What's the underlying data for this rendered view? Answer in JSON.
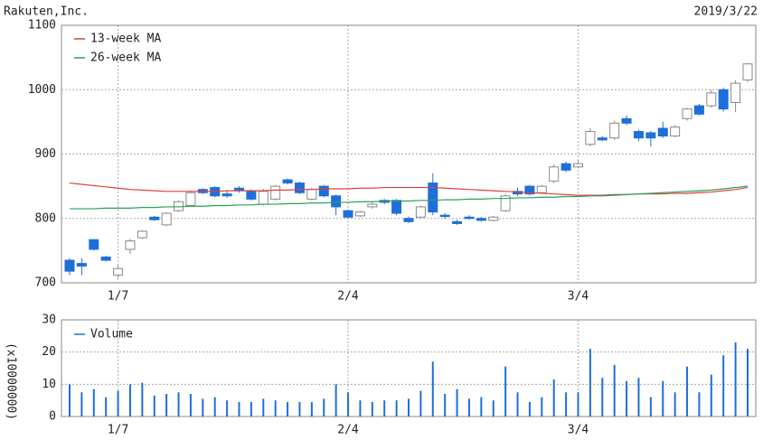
{
  "chart_data": [
    {
      "type": "candlestick",
      "title": "Rakuten,Inc.",
      "date": "2019/3/22",
      "categories": [
        null,
        null,
        null,
        null,
        "1/7",
        null,
        null,
        null,
        null,
        null,
        null,
        null,
        null,
        null,
        null,
        null,
        null,
        null,
        null,
        null,
        null,
        null,
        null,
        "2/4",
        null,
        null,
        null,
        null,
        null,
        null,
        null,
        null,
        null,
        null,
        null,
        null,
        null,
        null,
        null,
        null,
        null,
        null,
        "3/4",
        null,
        null,
        null,
        null,
        null,
        null,
        null,
        null,
        null,
        null,
        null,
        null,
        null,
        null
      ],
      "open": [
        735,
        730,
        767,
        740,
        712,
        752,
        770,
        802,
        790,
        812,
        820,
        845,
        848,
        838,
        847,
        843,
        822,
        830,
        860,
        855,
        830,
        850,
        835,
        812,
        804,
        818,
        828,
        828,
        800,
        802,
        855,
        805,
        795,
        802,
        800,
        797,
        812,
        842,
        850,
        840,
        858,
        885,
        880,
        915,
        925,
        925,
        955,
        935,
        933,
        940,
        928,
        955,
        975,
        975,
        1000,
        980,
        1015
      ],
      "close": [
        718,
        726,
        752,
        735,
        722,
        765,
        780,
        798,
        808,
        826,
        840,
        840,
        835,
        835,
        843,
        830,
        842,
        850,
        855,
        840,
        845,
        835,
        818,
        802,
        810,
        822,
        825,
        808,
        795,
        818,
        810,
        803,
        792,
        800,
        797,
        802,
        835,
        838,
        838,
        850,
        880,
        875,
        885,
        935,
        922,
        948,
        948,
        925,
        925,
        928,
        942,
        970,
        962,
        995,
        970,
        1010,
        1040
      ],
      "high": [
        738,
        738,
        768,
        742,
        727,
        768,
        782,
        804,
        810,
        828,
        842,
        847,
        850,
        842,
        850,
        845,
        846,
        852,
        862,
        857,
        848,
        852,
        837,
        814,
        812,
        825,
        830,
        830,
        803,
        820,
        870,
        808,
        798,
        805,
        802,
        804,
        838,
        848,
        852,
        852,
        884,
        888,
        890,
        940,
        928,
        952,
        960,
        938,
        936,
        950,
        945,
        972,
        978,
        1000,
        1003,
        1015,
        1042
      ],
      "low": [
        712,
        712,
        750,
        733,
        708,
        745,
        768,
        796,
        788,
        810,
        818,
        838,
        833,
        832,
        840,
        828,
        820,
        828,
        853,
        838,
        828,
        833,
        805,
        800,
        802,
        815,
        822,
        805,
        793,
        800,
        805,
        800,
        790,
        798,
        795,
        795,
        810,
        835,
        836,
        838,
        855,
        872,
        878,
        912,
        920,
        922,
        945,
        920,
        912,
        925,
        926,
        952,
        960,
        972,
        966,
        965,
        1012
      ],
      "up_color": "#ffffff",
      "up_edge": "#888888",
      "down_color": "#1e6fd9",
      "ylim": [
        700,
        1100
      ],
      "yticks": [
        700,
        800,
        900,
        1000,
        1100
      ],
      "grid": true,
      "series": [
        {
          "name": "13-week MA",
          "color": "#e0403a",
          "values": [
            855,
            853,
            851,
            849,
            847,
            845,
            844,
            843,
            842,
            842,
            842,
            842,
            842,
            843,
            843,
            843,
            843,
            844,
            844,
            845,
            845,
            846,
            846,
            846,
            847,
            847,
            848,
            848,
            848,
            848,
            848,
            847,
            846,
            845,
            844,
            843,
            842,
            841,
            840,
            839,
            838,
            837,
            836,
            836,
            836,
            837,
            837,
            838,
            838,
            838,
            839,
            839,
            840,
            841,
            843,
            845,
            848
          ]
        },
        {
          "name": "26-week MA",
          "color": "#2aa05a",
          "values": [
            815,
            815,
            815,
            816,
            816,
            816,
            817,
            817,
            818,
            818,
            819,
            819,
            820,
            820,
            821,
            821,
            822,
            822,
            823,
            823,
            824,
            824,
            825,
            825,
            826,
            826,
            827,
            827,
            827,
            828,
            828,
            829,
            829,
            830,
            830,
            831,
            831,
            832,
            832,
            833,
            833,
            834,
            834,
            835,
            835,
            836,
            837,
            838,
            839,
            840,
            841,
            842,
            843,
            844,
            846,
            848,
            850
          ]
        }
      ]
    },
    {
      "type": "bar",
      "ylabel": "(x10000000)",
      "categories": [
        null,
        null,
        null,
        null,
        "1/7",
        null,
        null,
        null,
        null,
        null,
        null,
        null,
        null,
        null,
        null,
        null,
        null,
        null,
        null,
        null,
        null,
        null,
        null,
        "2/4",
        null,
        null,
        null,
        null,
        null,
        null,
        null,
        null,
        null,
        null,
        null,
        null,
        null,
        null,
        null,
        null,
        null,
        null,
        "3/4",
        null,
        null,
        null,
        null,
        null,
        null,
        null,
        null,
        null,
        null,
        null,
        null,
        null,
        null
      ],
      "series": [
        {
          "name": "Volume",
          "color": "#1e6fd9",
          "values": [
            10,
            7.5,
            8.5,
            6,
            8,
            10,
            10.5,
            6.5,
            7,
            7.5,
            7,
            5.5,
            6,
            5,
            4.5,
            4.5,
            5.5,
            5,
            4.5,
            4.5,
            4.5,
            5.5,
            10,
            7.5,
            5,
            4.5,
            5,
            5,
            5.5,
            8,
            17,
            7,
            8.5,
            5.5,
            6,
            5,
            15.5,
            7.5,
            4.5,
            6,
            11.5,
            7.5,
            7.5,
            21,
            12,
            16,
            11,
            12,
            6,
            11,
            7.5,
            15.5,
            7.5,
            13,
            19,
            23,
            21
          ]
        }
      ],
      "ylim": [
        0,
        30
      ],
      "yticks": [
        0,
        10,
        20,
        30
      ],
      "grid": true
    }
  ]
}
